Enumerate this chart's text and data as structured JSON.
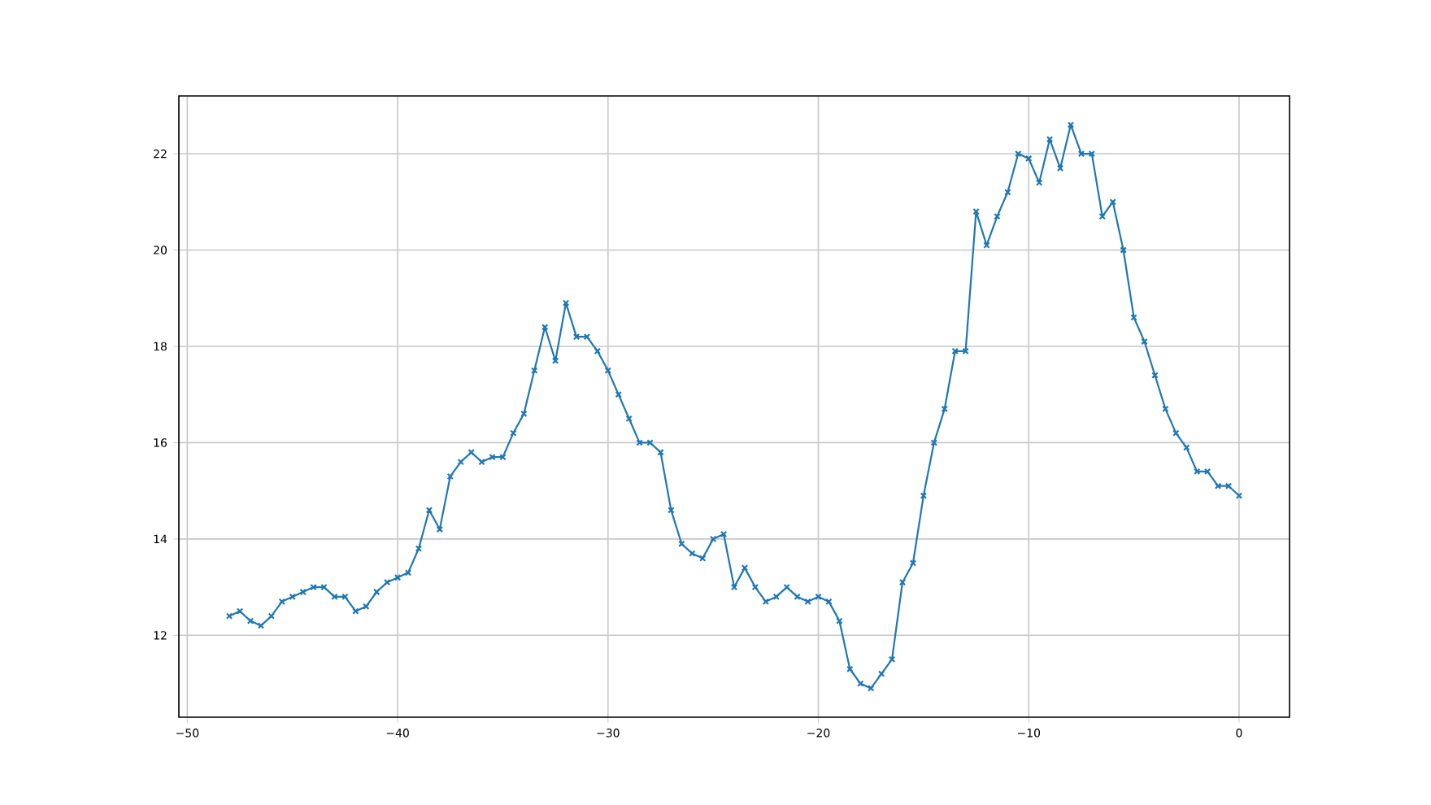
{
  "chart_data": {
    "type": "line",
    "color": "#1f77b4",
    "marker": "cross",
    "grid": true,
    "x": [
      -48,
      -47.5,
      -47,
      -46.5,
      -46,
      -45.5,
      -45,
      -44.5,
      -44,
      -43.5,
      -43,
      -42.5,
      -42,
      -41.5,
      -41,
      -40.5,
      -40,
      -39.5,
      -39,
      -38.5,
      -38,
      -37.5,
      -37,
      -36.5,
      -36,
      -35.5,
      -35,
      -34.5,
      -34,
      -33.5,
      -33,
      -32.5,
      -32,
      -31.5,
      -31,
      -30.5,
      -30,
      -29.5,
      -29,
      -28.5,
      -28,
      -27.5,
      -27,
      -26.5,
      -26,
      -25.5,
      -25,
      -24.5,
      -24,
      -23.5,
      -23,
      -22.5,
      -22,
      -21.5,
      -21,
      -20.5,
      -20,
      -19.5,
      -19,
      -18.5,
      -18,
      -17.5,
      -17,
      -16.5,
      -16,
      -15.5,
      -15,
      -14.5,
      -14,
      -13.5,
      -13,
      -12.5,
      -12,
      -11.5,
      -11,
      -10.5,
      -10,
      -9.5,
      -9,
      -8.5,
      -8,
      -7.5,
      -7,
      -6.5,
      -6,
      -5.5,
      -5,
      -4.5,
      -4,
      -3.5,
      -3,
      -2.5,
      -2,
      -1.5,
      -1,
      -0.5,
      0
    ],
    "values": [
      12.4,
      12.5,
      12.3,
      12.2,
      12.4,
      12.7,
      12.8,
      12.9,
      13.0,
      13.0,
      12.8,
      12.8,
      12.5,
      12.6,
      12.9,
      13.1,
      13.2,
      13.3,
      13.8,
      14.6,
      14.2,
      15.3,
      15.6,
      15.8,
      15.6,
      15.7,
      15.7,
      16.2,
      16.6,
      17.5,
      18.4,
      17.7,
      18.9,
      18.2,
      18.2,
      17.9,
      17.5,
      17.0,
      16.5,
      16.0,
      16.0,
      15.8,
      14.6,
      13.9,
      13.7,
      13.6,
      14.0,
      14.1,
      13.0,
      13.4,
      13.0,
      12.7,
      12.8,
      13.0,
      12.8,
      12.7,
      12.8,
      12.7,
      12.3,
      11.3,
      11.0,
      10.9,
      11.2,
      11.5,
      13.1,
      13.5,
      14.9,
      16.0,
      16.7,
      17.9,
      17.9,
      20.8,
      20.1,
      20.7,
      21.2,
      22.0,
      21.9,
      21.4,
      22.3,
      21.7,
      22.6,
      22.0,
      22.0,
      20.7,
      21.0,
      20.0,
      18.6,
      18.1,
      17.4,
      16.7,
      16.2,
      15.9,
      15.4,
      15.4,
      15.1,
      15.1,
      14.9
    ],
    "xlim": [
      -50.4,
      2.4
    ],
    "ylim": [
      10.3,
      23.2
    ],
    "xticks": [
      {
        "value": -50,
        "label": "−50"
      },
      {
        "value": -40,
        "label": "−40"
      },
      {
        "value": -30,
        "label": "−30"
      },
      {
        "value": -20,
        "label": "−20"
      },
      {
        "value": -10,
        "label": "−10"
      },
      0
    ],
    "yticks": [
      12,
      14,
      16,
      18,
      20,
      22
    ]
  }
}
